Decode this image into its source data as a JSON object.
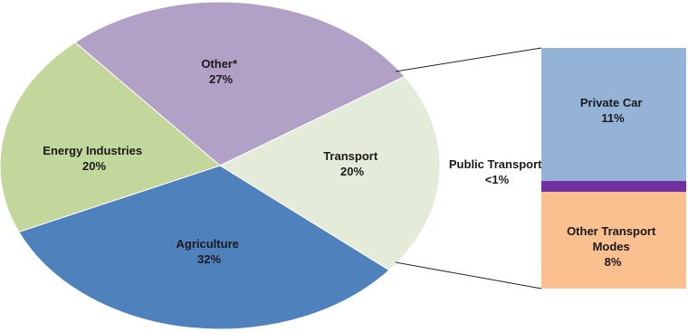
{
  "chart_data": {
    "type": "pie",
    "pie": {
      "slices": [
        {
          "label": "Transport",
          "value": 20,
          "value_label": "20%",
          "color": "#e4ecd9"
        },
        {
          "label": "Agriculture",
          "value": 32,
          "value_label": "32%",
          "color": "#4f81bd"
        },
        {
          "label": "Energy Industries",
          "value": 20,
          "value_label": "20%",
          "color": "#c3d69b"
        },
        {
          "label": "Other*",
          "value": 27,
          "value_label": "27%",
          "color": "#b2a1c7"
        }
      ]
    },
    "breakdown": {
      "of": "Transport",
      "segments": [
        {
          "label": "Private Car",
          "value_label": "11%",
          "value": 11,
          "color": "#95b3d7"
        },
        {
          "label": "Public Transport",
          "value_label": "<1%",
          "value": 0.5,
          "color": "#7030a0"
        },
        {
          "label": "Other Transport Modes",
          "value_label": "8%",
          "value": 8,
          "color": "#fac090"
        }
      ]
    }
  }
}
